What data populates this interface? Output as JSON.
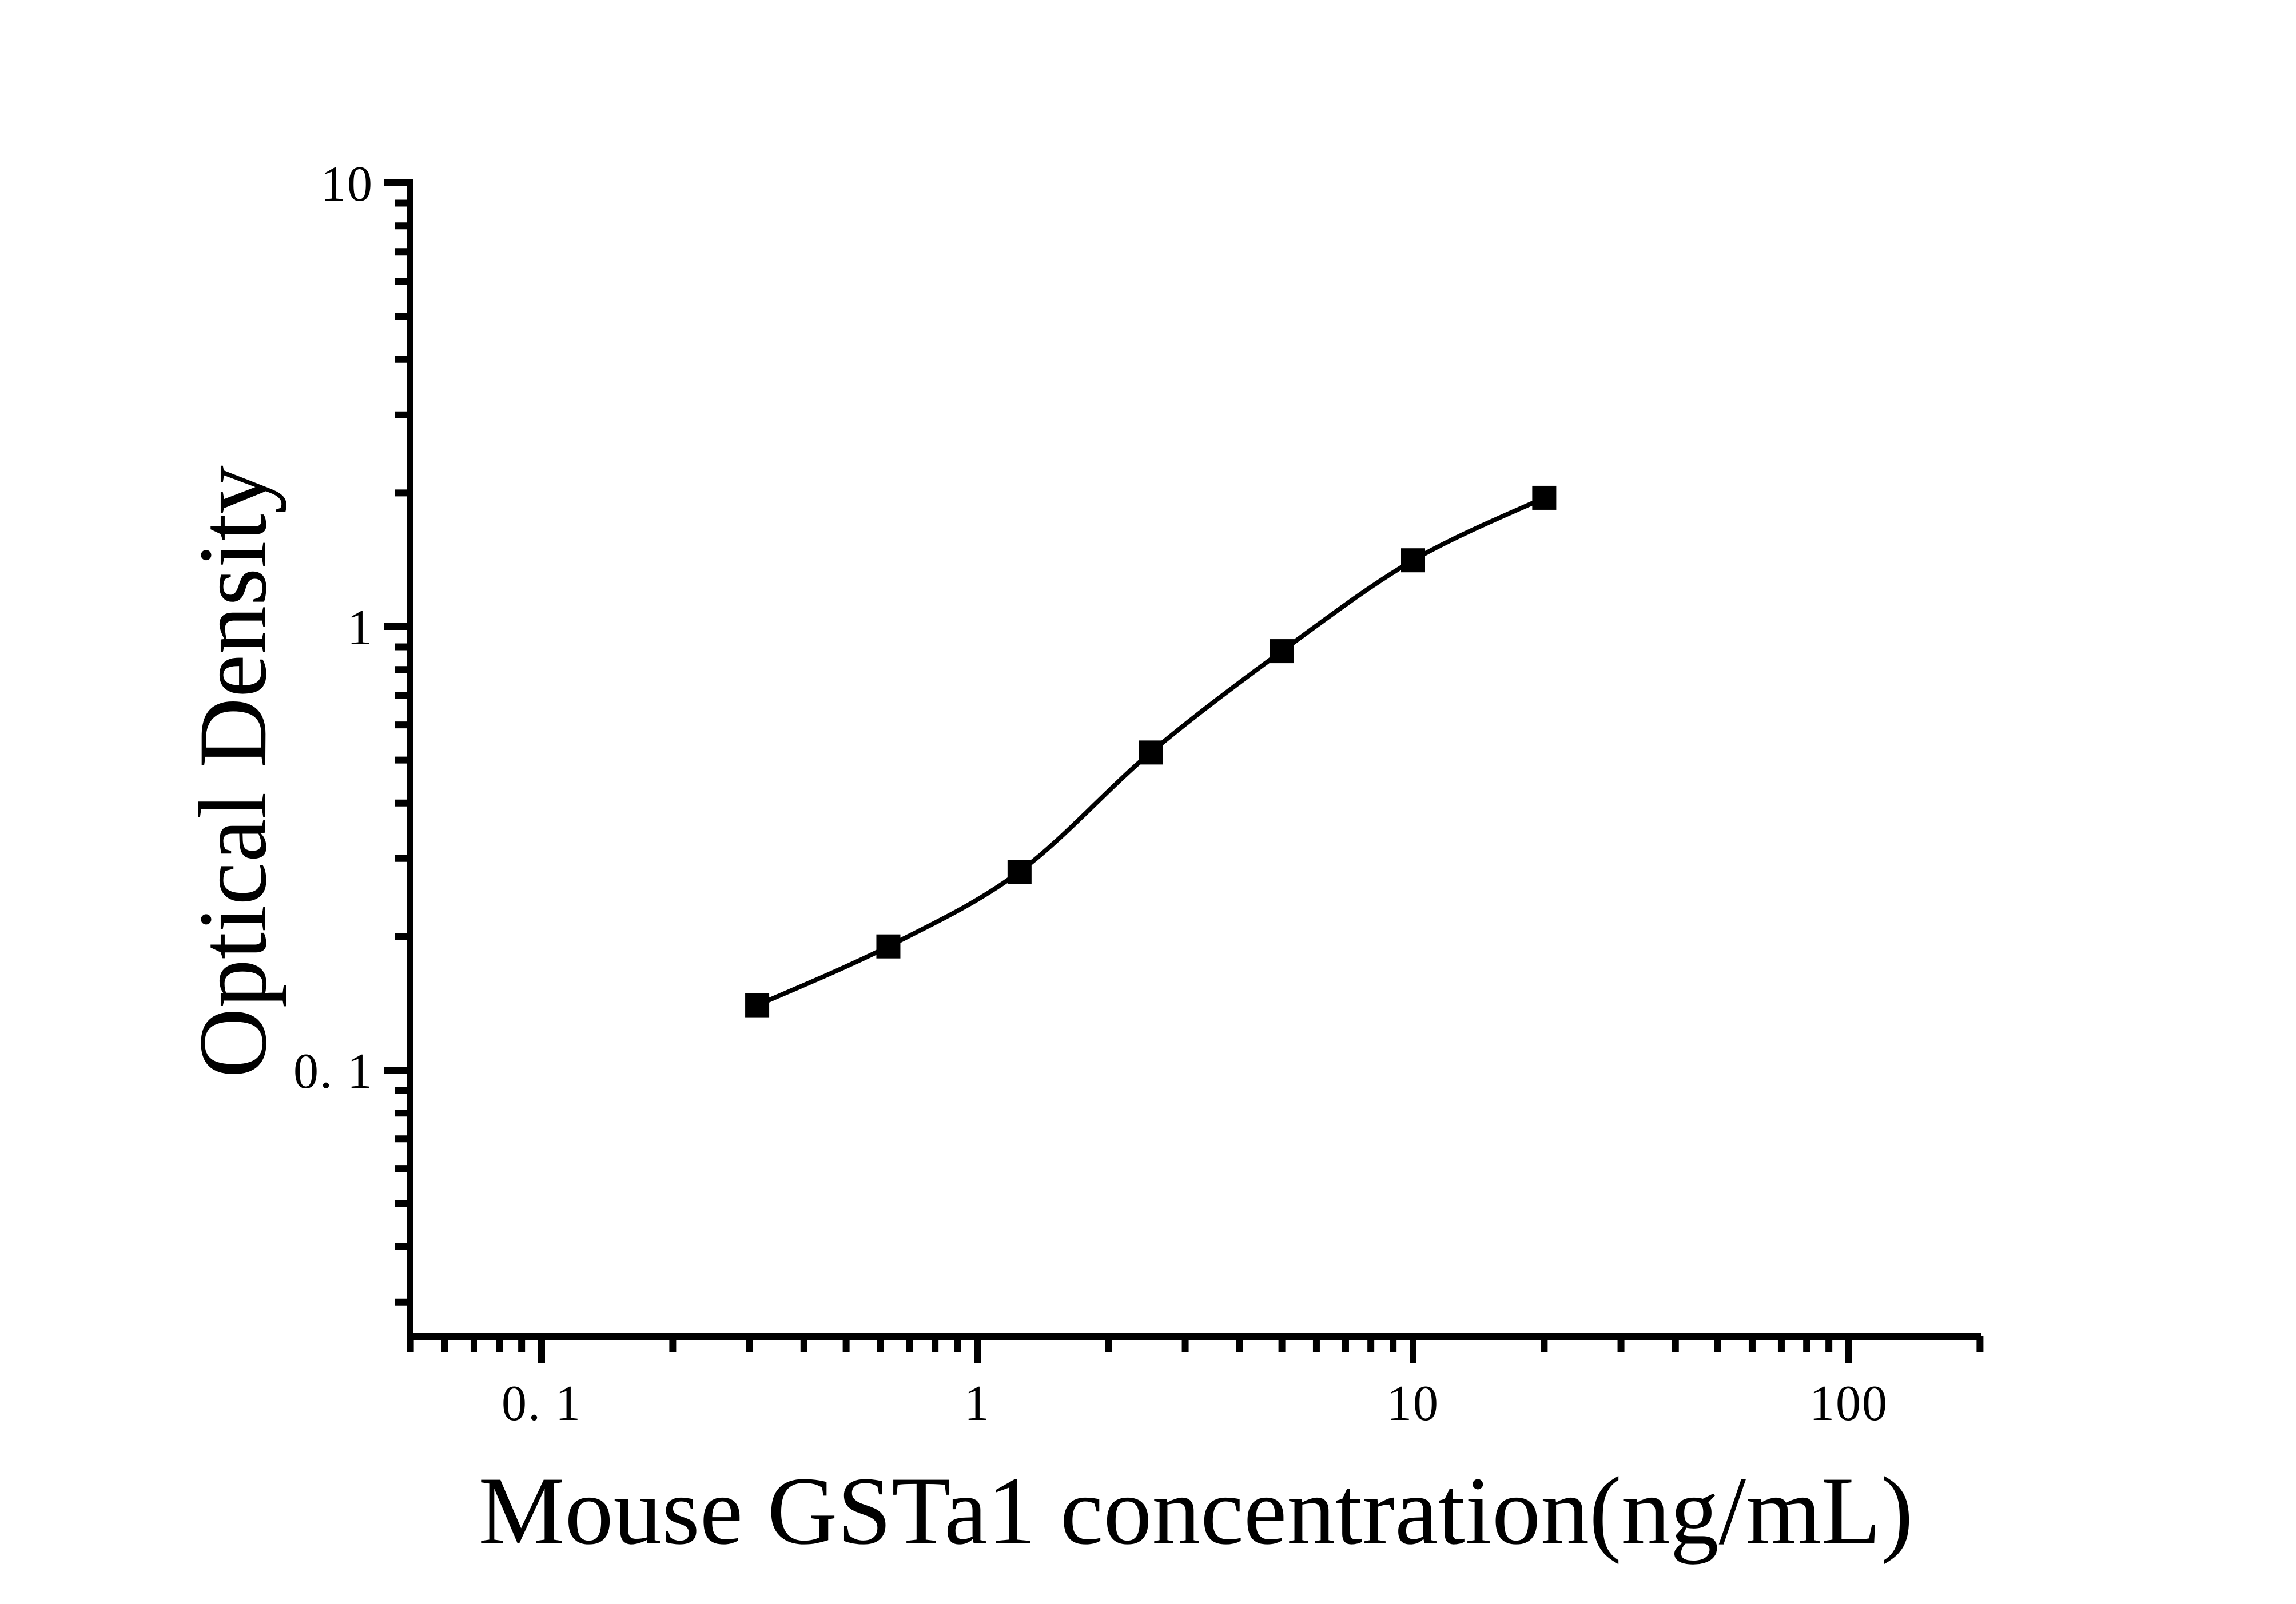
{
  "figure": {
    "type": "elisa-standard-curve",
    "background_color": "#ffffff",
    "ink_color": "#000000"
  },
  "chart_data": {
    "type": "line",
    "subtype": "log-log standard curve, smooth line with filled square markers",
    "title": "",
    "xlabel": "Mouse GSTa1 concentration(ng/mL)",
    "ylabel": "Optical Density",
    "xscale": "log",
    "yscale": "log",
    "xlim": [
      0.045,
      200
    ],
    "ylim": [
      0.025,
      10
    ],
    "grid": "off",
    "legend": "none",
    "x_major_ticks": [
      0.1,
      1,
      10,
      100
    ],
    "x_major_tick_labels": [
      "0. 1",
      "1",
      "10",
      "100"
    ],
    "x_minor_ticks": [
      0.05,
      0.06,
      0.07,
      0.08,
      0.09,
      0.2,
      0.3,
      0.4,
      0.5,
      0.6,
      0.7,
      0.8,
      0.9,
      2,
      3,
      4,
      5,
      6,
      7,
      8,
      9,
      20,
      30,
      40,
      50,
      60,
      70,
      80,
      90,
      200
    ],
    "y_major_ticks": [
      10,
      1,
      0.1
    ],
    "y_major_tick_labels": [
      "10",
      "1",
      "0. 1"
    ],
    "y_minor_ticks": [
      9,
      8,
      7,
      6,
      5,
      4,
      3,
      2,
      0.9,
      0.8,
      0.7,
      0.6,
      0.5,
      0.4,
      0.3,
      0.2,
      0.09,
      0.08,
      0.07,
      0.06,
      0.05,
      0.04,
      0.03
    ],
    "series": [
      {
        "name": "standard curve",
        "marker": "filled-square",
        "line_style": "smooth",
        "color": "#000000",
        "x_concentration_ng_per_ml": [
          0.3125,
          0.625,
          1.25,
          2.5,
          5,
          10,
          20
        ],
        "y_optical_density": [
          0.14,
          0.19,
          0.28,
          0.52,
          0.88,
          1.41,
          1.95
        ]
      }
    ]
  }
}
